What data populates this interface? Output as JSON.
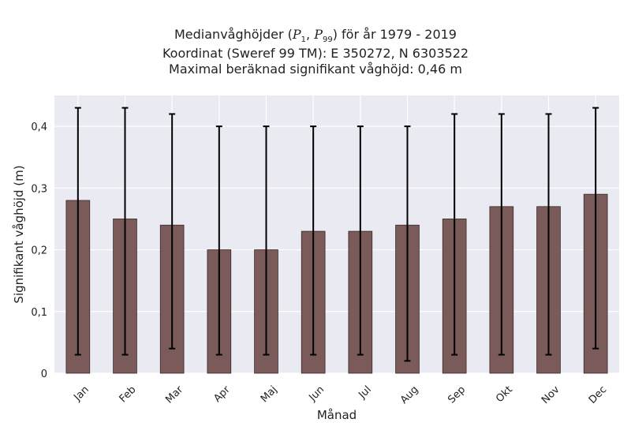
{
  "chart_data": {
    "type": "bar",
    "title_lines": {
      "line1_pre": "Medianvåghöjder (",
      "p1": "P",
      "p1_sub": "1",
      "sep": ", ",
      "p2": "P",
      "p2_sub": "99",
      "line1_post": ") för år 1979 - 2019",
      "line2": "Koordinat (Sweref 99 TM): E 350272, N 6303522",
      "line3": "Maximal beräknad signifikant våghöjd: 0,46 m"
    },
    "xlabel": "Månad",
    "ylabel": "Signifikant våghöjd (m)",
    "ylim": [
      0,
      0.45
    ],
    "yticks": [
      0,
      0.1,
      0.2,
      0.3,
      0.4
    ],
    "ytick_labels": [
      "0",
      "0,1",
      "0,2",
      "0,3",
      "0,4"
    ],
    "grid": true,
    "categories": [
      "Jan",
      "Feb",
      "Mar",
      "Apr",
      "Maj",
      "Jun",
      "Jul",
      "Aug",
      "Sep",
      "Okt",
      "Nov",
      "Dec"
    ],
    "values": [
      0.28,
      0.25,
      0.24,
      0.2,
      0.2,
      0.23,
      0.23,
      0.24,
      0.25,
      0.27,
      0.27,
      0.29
    ],
    "p1": [
      0.03,
      0.03,
      0.04,
      0.03,
      0.03,
      0.03,
      0.03,
      0.02,
      0.03,
      0.03,
      0.03,
      0.04
    ],
    "p99": [
      0.43,
      0.43,
      0.42,
      0.4,
      0.4,
      0.4,
      0.4,
      0.4,
      0.42,
      0.42,
      0.42,
      0.43
    ],
    "colors": {
      "bar": "#7b5a5a",
      "bar_edge": "#3a2a2a",
      "plot_bg": "#eaeaf2",
      "grid": "#ffffff",
      "errorbar": "#000000",
      "text": "#222222"
    }
  }
}
